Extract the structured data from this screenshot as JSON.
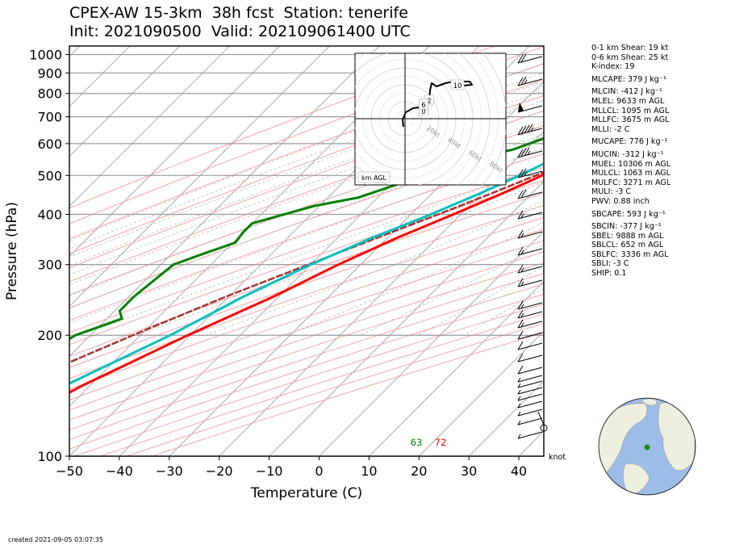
{
  "title_line1": "CPEX-AW 15-3km  38h fcst  Station: tenerife",
  "title_line2": "Init: 2021090500  Valid: 202109061400 UTC",
  "footer": "created 2021-09-05 03:07:35",
  "stats": [
    "0-1 km Shear: 19 kt",
    "0-6 km Shear: 25 kt",
    "K-index: 19",
    "MLCAPE: 379 J kg⁻¹",
    "MLCIN: -412 J kg⁻¹",
    "MLEL: 9633 m AGL",
    "MLLCL: 1095 m AGL",
    "MLLFC: 3675 m AGL",
    "MLLI: -2 C",
    "MUCAPE: 776 J kg⁻¹",
    "MUCIN: -312 J kg⁻¹",
    "MUEL: 10306 m AGL",
    "MULCL: 1063 m AGL",
    "MULFC: 3271 m AGL",
    "MULI: -3 C",
    "PWV: 0.88 inch",
    "SBCAPE: 593 J kg⁻¹",
    "SBCIN: -377 J kg⁻¹",
    "SBEL: 9888 m AGL",
    "SBLCL: 652 m AGL",
    "SBLFC: 3336 m AGL",
    "SBLI: -3 C",
    "SHIP: 0.1"
  ],
  "chart_data": {
    "type": "line",
    "xlabel": "Temperature (C)",
    "ylabel": "Pressure (hPa)",
    "xlim": [
      -50,
      45
    ],
    "ylim": [
      1050,
      100
    ],
    "y_scale": "log",
    "skew": true,
    "xticks": [
      -50,
      -40,
      -30,
      -20,
      -10,
      0,
      10,
      20,
      30,
      40
    ],
    "xtick_labels": [
      "−50",
      "−40",
      "−30",
      "−20",
      "−10",
      "0",
      "10",
      "20",
      "30",
      "40"
    ],
    "yticks": [
      100,
      200,
      300,
      400,
      500,
      600,
      700,
      800,
      900,
      1000
    ],
    "surface_labels": {
      "dewpoint": "63",
      "temperature": "72"
    },
    "wind_units_label": "knot",
    "series": [
      {
        "role": "temperature",
        "color": "#ff0000",
        "points": [
          [
            1000,
            20.5
          ],
          [
            975,
            22.5
          ],
          [
            955,
            21.5
          ],
          [
            935,
            21.0
          ],
          [
            915,
            21.3
          ],
          [
            900,
            24.5
          ],
          [
            870,
            25.0
          ],
          [
            850,
            24.5
          ],
          [
            820,
            23.5
          ],
          [
            800,
            21.5
          ],
          [
            780,
            19.0
          ],
          [
            760,
            16.2
          ],
          [
            740,
            13.2
          ],
          [
            720,
            10.2
          ],
          [
            700,
            7.5
          ],
          [
            680,
            4.8
          ],
          [
            650,
            1.3
          ],
          [
            600,
            -3.0
          ],
          [
            550,
            -7.5
          ],
          [
            500,
            -11.5
          ],
          [
            450,
            -16.0
          ],
          [
            400,
            -21.5
          ],
          [
            350,
            -28.0
          ],
          [
            300,
            -34.5
          ],
          [
            250,
            -41.0
          ],
          [
            200,
            -50.5
          ],
          [
            150,
            -61.5
          ],
          [
            120,
            -68.5
          ],
          [
            100,
            -74.0
          ]
        ]
      },
      {
        "role": "dewpoint",
        "color": "#00c0c0",
        "points": [
          [
            990,
            18.0
          ],
          [
            950,
            17.5
          ],
          [
            900,
            16.0
          ],
          [
            850,
            8.0
          ],
          [
            800,
            5.0
          ],
          [
            760,
            3.0
          ],
          [
            720,
            0.5
          ],
          [
            700,
            -1.0
          ],
          [
            650,
            -4.5
          ],
          [
            600,
            -8.5
          ],
          [
            550,
            -12.5
          ],
          [
            500,
            -16.0
          ],
          [
            450,
            -20.5
          ],
          [
            400,
            -26.0
          ],
          [
            350,
            -33.0
          ],
          [
            300,
            -40.0
          ],
          [
            250,
            -47.0
          ],
          [
            200,
            -54.0
          ],
          [
            150,
            -65.0
          ],
          [
            120,
            -73.0
          ],
          [
            100,
            -77.5
          ]
        ]
      },
      {
        "role": "parcel",
        "color": "#a83232",
        "dashed": true,
        "points": [
          [
            955,
            21.2
          ],
          [
            925,
            18.0
          ],
          [
            900,
            16.5
          ],
          [
            850,
            12.5
          ],
          [
            800,
            9.6
          ],
          [
            750,
            6.6
          ],
          [
            700,
            3.4
          ],
          [
            650,
            0.0
          ],
          [
            600,
            -3.8
          ],
          [
            550,
            -8.0
          ],
          [
            500,
            -12.8
          ],
          [
            450,
            -18.2
          ],
          [
            400,
            -24.5
          ],
          [
            350,
            -32.0
          ],
          [
            300,
            -40.5
          ],
          [
            250,
            -50.5
          ],
          [
            200,
            -61.5
          ],
          [
            150,
            -75.0
          ],
          [
            120,
            -86.0
          ],
          [
            100,
            -94.0
          ]
        ]
      },
      {
        "role": "moisture",
        "color": "#008000",
        "points": [
          [
            990,
            16.5
          ],
          [
            950,
            16.5
          ],
          [
            900,
            16.0
          ],
          [
            860,
            10.0
          ],
          [
            830,
            2.0
          ],
          [
            800,
            -7.0
          ],
          [
            770,
            -11.5
          ],
          [
            730,
            -13.5
          ],
          [
            700,
            -15.0
          ],
          [
            680,
            -16.0
          ],
          [
            650,
            -17.0
          ],
          [
            620,
            -18.5
          ],
          [
            580,
            -22.5
          ],
          [
            550,
            -29.5
          ],
          [
            500,
            -38.5
          ],
          [
            480,
            -38.0
          ],
          [
            440,
            -44.0
          ],
          [
            420,
            -51.0
          ],
          [
            380,
            -60.0
          ],
          [
            360,
            -60.0
          ],
          [
            340,
            -59.5
          ],
          [
            320,
            -63.5
          ],
          [
            300,
            -67.5
          ],
          [
            250,
            -69.0
          ],
          [
            230,
            -69.0
          ],
          [
            220,
            -67.0
          ],
          [
            200,
            -73.0
          ],
          [
            180,
            -75.5
          ],
          [
            160,
            -77.0
          ],
          [
            130,
            -79.0
          ],
          [
            115,
            -80.0
          ],
          [
            100,
            -81.0
          ]
        ]
      }
    ],
    "hodograph": {
      "label": "km AGL",
      "ring_labels": [
        "20kt",
        "40kt",
        "60kt",
        "80kt"
      ],
      "height_labels": [
        "0",
        "2",
        "6",
        "10"
      ]
    }
  }
}
